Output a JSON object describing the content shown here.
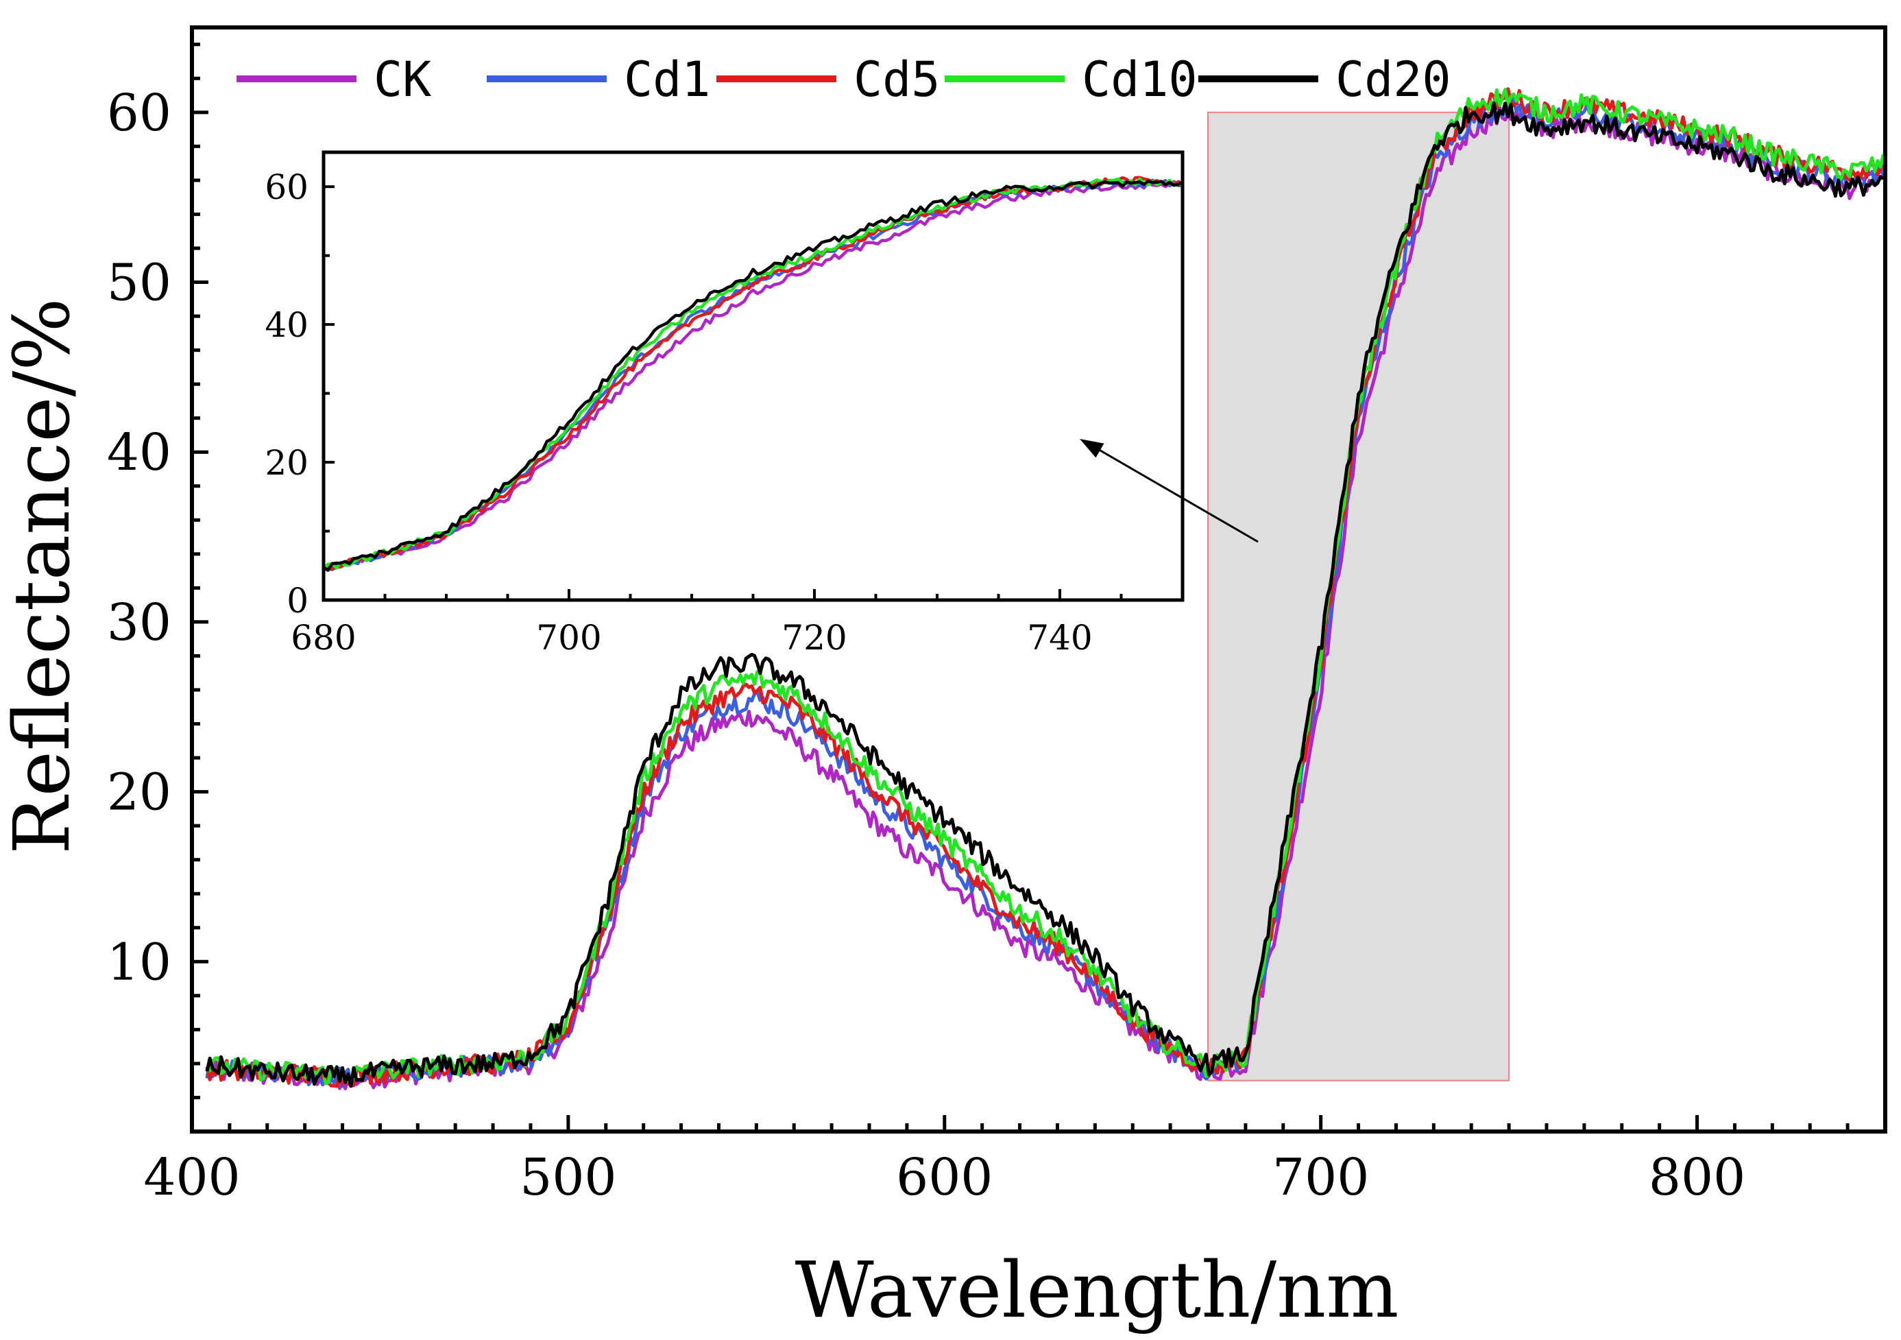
{
  "chart_data": {
    "type": "line",
    "title": "",
    "xlabel": "Wavelength/nm",
    "ylabel": "Reflectance/%",
    "xlim": [
      400,
      850
    ],
    "ylim": [
      0,
      65
    ],
    "xticks": [
      400,
      500,
      600,
      700,
      800
    ],
    "yticks": [
      10,
      20,
      30,
      40,
      50,
      60
    ],
    "legend_position": "top",
    "series": [
      {
        "name": "CK",
        "color": "#b026c4",
        "x": [
          400,
          420,
          440,
          460,
          480,
          490,
          500,
          510,
          520,
          530,
          540,
          550,
          560,
          570,
          580,
          590,
          600,
          610,
          620,
          630,
          640,
          650,
          660,
          670,
          680,
          690,
          700,
          710,
          720,
          730,
          740,
          750,
          760,
          770,
          780,
          790,
          800,
          810,
          820,
          830,
          840,
          850
        ],
        "y": [
          3.6,
          3.3,
          3.0,
          3.4,
          3.8,
          4.0,
          5.5,
          11.0,
          18.5,
          22.5,
          24.0,
          24.5,
          23.0,
          21.0,
          18.5,
          16.5,
          15.0,
          13.0,
          11.0,
          10.0,
          8.2,
          6.0,
          4.6,
          3.4,
          4.0,
          14.0,
          26.0,
          41.0,
          49.0,
          56.0,
          59.0,
          60.0,
          59.0,
          59.5,
          59.0,
          58.5,
          58.0,
          57.5,
          56.5,
          56.0,
          55.5,
          56.0
        ]
      },
      {
        "name": "Cd1",
        "color": "#3a5fe0",
        "x": [
          400,
          420,
          440,
          460,
          480,
          490,
          500,
          510,
          520,
          530,
          540,
          550,
          560,
          570,
          580,
          590,
          600,
          610,
          620,
          630,
          640,
          650,
          660,
          670,
          680,
          690,
          700,
          710,
          720,
          730,
          740,
          750,
          760,
          770,
          780,
          790,
          800,
          810,
          820,
          830,
          840,
          850
        ],
        "y": [
          3.8,
          3.4,
          3.2,
          3.6,
          4.0,
          4.2,
          6.0,
          12.0,
          19.5,
          23.5,
          25.0,
          25.5,
          24.5,
          22.5,
          20.0,
          18.0,
          16.0,
          14.0,
          12.0,
          10.8,
          8.8,
          6.3,
          4.8,
          3.6,
          4.3,
          15.0,
          27.0,
          42.0,
          50.0,
          57.0,
          59.5,
          60.5,
          59.5,
          60.0,
          59.5,
          59.0,
          58.5,
          58.0,
          57.0,
          56.5,
          56.0,
          56.5
        ]
      },
      {
        "name": "Cd5",
        "color": "#e3191c",
        "x": [
          400,
          420,
          440,
          460,
          480,
          490,
          500,
          510,
          520,
          530,
          540,
          550,
          560,
          570,
          580,
          590,
          600,
          610,
          620,
          630,
          640,
          650,
          660,
          670,
          680,
          690,
          700,
          710,
          720,
          730,
          740,
          750,
          760,
          770,
          780,
          790,
          800,
          810,
          820,
          830,
          840,
          850
        ],
        "y": [
          3.7,
          3.5,
          3.2,
          3.7,
          4.0,
          4.3,
          6.2,
          12.3,
          20.0,
          24.0,
          25.5,
          26.0,
          25.0,
          23.0,
          20.5,
          18.5,
          16.5,
          14.3,
          12.3,
          11.0,
          9.0,
          6.5,
          4.9,
          3.7,
          4.4,
          15.5,
          27.5,
          42.5,
          50.5,
          57.5,
          60.0,
          61.0,
          60.0,
          60.5,
          60.0,
          59.5,
          59.0,
          58.5,
          57.5,
          57.0,
          56.5,
          57.0
        ]
      },
      {
        "name": "Cd10",
        "color": "#22e622",
        "x": [
          400,
          420,
          440,
          460,
          480,
          490,
          500,
          510,
          520,
          530,
          540,
          550,
          560,
          570,
          580,
          590,
          600,
          610,
          620,
          630,
          640,
          650,
          660,
          670,
          680,
          690,
          700,
          710,
          720,
          730,
          740,
          750,
          760,
          770,
          780,
          790,
          800,
          810,
          820,
          830,
          840,
          850
        ],
        "y": [
          3.9,
          3.6,
          3.3,
          3.8,
          4.1,
          4.4,
          6.5,
          12.8,
          20.8,
          24.8,
          26.3,
          26.7,
          25.8,
          23.8,
          21.3,
          19.2,
          17.2,
          15.0,
          13.0,
          11.5,
          9.5,
          6.8,
          5.0,
          3.8,
          4.5,
          16.0,
          28.0,
          43.0,
          51.0,
          58.0,
          60.5,
          61.0,
          60.0,
          60.5,
          60.0,
          59.5,
          59.0,
          58.5,
          57.5,
          57.0,
          56.5,
          57.0
        ]
      },
      {
        "name": "Cd20",
        "color": "#000000",
        "x": [
          400,
          420,
          440,
          460,
          480,
          490,
          500,
          510,
          520,
          530,
          540,
          550,
          560,
          570,
          580,
          590,
          600,
          610,
          620,
          630,
          640,
          650,
          660,
          670,
          680,
          690,
          700,
          710,
          720,
          730,
          740,
          750,
          760,
          770,
          780,
          790,
          800,
          810,
          820,
          830,
          840,
          850
        ],
        "y": [
          4.0,
          3.5,
          3.2,
          3.8,
          4.0,
          4.5,
          6.8,
          13.3,
          21.5,
          25.8,
          27.3,
          27.6,
          26.5,
          24.7,
          22.3,
          20.2,
          18.4,
          16.3,
          14.3,
          12.5,
          10.3,
          7.4,
          5.3,
          3.9,
          4.6,
          16.5,
          28.5,
          43.5,
          51.5,
          58.0,
          60.0,
          60.0,
          59.0,
          59.5,
          59.0,
          58.5,
          58.0,
          57.5,
          56.5,
          56.0,
          55.5,
          56.0
        ]
      }
    ],
    "highlight_region": {
      "x_range": [
        670,
        750
      ],
      "y_range": [
        3,
        60
      ]
    },
    "inset": {
      "xlim": [
        680,
        750
      ],
      "ylim": [
        0,
        65
      ],
      "xticks": [
        680,
        700,
        720,
        740
      ],
      "yticks": [
        0,
        20,
        40,
        60
      ],
      "series": [
        {
          "name": "CK",
          "color": "#b026c4",
          "x": [
            680,
            685,
            690,
            695,
            700,
            705,
            710,
            715,
            720,
            725,
            730,
            735,
            740,
            745,
            750
          ],
          "y": [
            4.5,
            6.5,
            9.0,
            15.0,
            23.0,
            32.0,
            39.0,
            44.5,
            48.5,
            52.0,
            55.5,
            58.0,
            59.5,
            60.0,
            60.5
          ]
        },
        {
          "name": "Cd1",
          "color": "#3a5fe0",
          "x": [
            680,
            685,
            690,
            695,
            700,
            705,
            710,
            715,
            720,
            725,
            730,
            735,
            740,
            745,
            750
          ],
          "y": [
            4.5,
            6.7,
            9.5,
            16.0,
            24.5,
            34.0,
            41.0,
            46.0,
            49.5,
            53.0,
            56.5,
            59.0,
            60.0,
            60.5,
            60.5
          ]
        },
        {
          "name": "Cd5",
          "color": "#e3191c",
          "x": [
            680,
            685,
            690,
            695,
            700,
            705,
            710,
            715,
            720,
            725,
            730,
            735,
            740,
            745,
            750
          ],
          "y": [
            4.5,
            6.7,
            9.4,
            15.8,
            24.0,
            33.5,
            40.5,
            46.0,
            49.5,
            53.5,
            56.5,
            59.0,
            60.0,
            61.0,
            60.5
          ]
        },
        {
          "name": "Cd10",
          "color": "#22e622",
          "x": [
            680,
            685,
            690,
            695,
            700,
            705,
            710,
            715,
            720,
            725,
            730,
            735,
            740,
            745,
            750
          ],
          "y": [
            4.6,
            6.8,
            9.8,
            16.5,
            25.2,
            35.0,
            42.0,
            46.8,
            50.2,
            53.8,
            57.0,
            59.2,
            60.2,
            60.8,
            60.5
          ]
        },
        {
          "name": "Cd20",
          "color": "#000000",
          "x": [
            680,
            685,
            690,
            695,
            700,
            705,
            710,
            715,
            720,
            725,
            730,
            735,
            740,
            745,
            750
          ],
          "y": [
            4.6,
            7.0,
            10.0,
            17.0,
            26.0,
            36.0,
            43.0,
            47.5,
            51.0,
            54.5,
            57.5,
            59.5,
            60.0,
            60.5,
            60.5
          ]
        }
      ]
    }
  }
}
